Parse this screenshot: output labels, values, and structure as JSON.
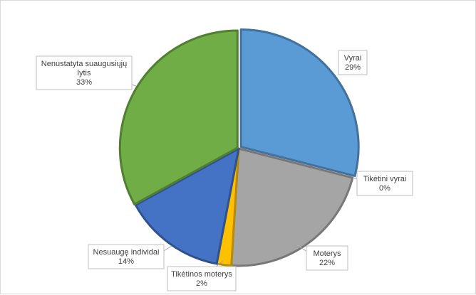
{
  "chart_data": {
    "type": "pie",
    "categories": [
      "Vyrai",
      "Tikėtini vyrai",
      "Moterys",
      "Tikėtinos moterys",
      "Nesuaugę individai",
      "Nenustatyta suaugusiųjų lytis"
    ],
    "values": [
      29,
      0,
      22,
      2,
      14,
      33
    ],
    "value_labels": [
      "29%",
      "0%",
      "22%",
      "2%",
      "14%",
      "33%"
    ],
    "label_lines": [
      [
        "Vyrai"
      ],
      [
        "Tikėtini vyrai"
      ],
      [
        "Moterys"
      ],
      [
        "Tikėtinos moterys"
      ],
      [
        "Nesuaugę individai"
      ],
      [
        "Nenustatyta suaugusiųjų",
        "lytis"
      ]
    ],
    "colors": [
      "#5b9bd5",
      "#ed7d31",
      "#a5a5a5",
      "#ffc000",
      "#4472c4",
      "#70ad47"
    ],
    "border_colors": [
      "#41719c",
      "#ae5a21",
      "#787878",
      "#bc8c00",
      "#2f528f",
      "#507e32"
    ],
    "legend": "none"
  }
}
